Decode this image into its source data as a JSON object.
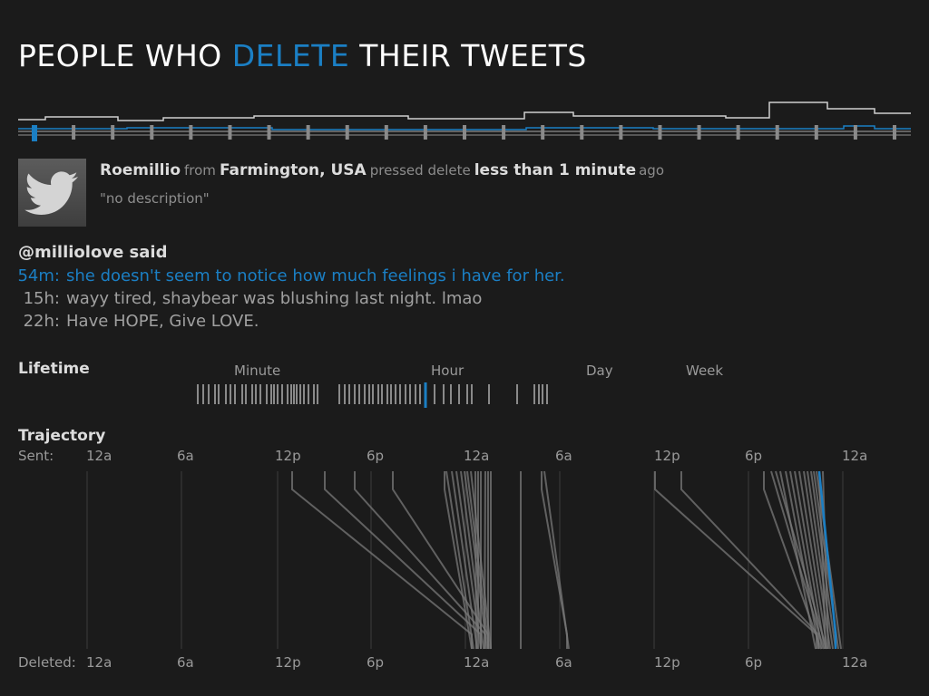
{
  "title": {
    "part1": "PEOPLE WHO ",
    "accent": "DELETE",
    "part2": " THEIR TWEETS"
  },
  "colors": {
    "accent": "#1b7fc4",
    "mark": "#8a8a8a",
    "background": "#1b1b1b"
  },
  "timeline": {
    "bars": 23,
    "selected_index": 0
  },
  "user": {
    "name": "Roemillio",
    "from_word": "from",
    "location": "Farmington, USA",
    "pressed_word": "pressed delete",
    "when": "less than 1 minute",
    "ago_word": "ago",
    "description": "\"no description\"",
    "avatar_icon": "twitter-bird-icon"
  },
  "tweets": {
    "said": "@milliolove said",
    "items": [
      {
        "age": "54m:",
        "text": "she doesn't seem to notice how much feelings i have for her.",
        "highlight": true
      },
      {
        "age": "15h:",
        "text": "wayy tired, shaybear was blushing last night. lmao",
        "highlight": false
      },
      {
        "age": "22h:",
        "text": "Have HOPE, Give LOVE.",
        "highlight": false
      }
    ]
  },
  "lifetime": {
    "label": "Lifetime",
    "scale": [
      "Minute",
      "Hour",
      "Day",
      "Week"
    ]
  },
  "trajectory": {
    "label": "Trajectory",
    "sent_label": "Sent:",
    "deleted_label": "Deleted:",
    "ticks": [
      "12a",
      "6a",
      "12p",
      "6p",
      "12a",
      "6a",
      "12p",
      "6p",
      "12a"
    ]
  }
}
